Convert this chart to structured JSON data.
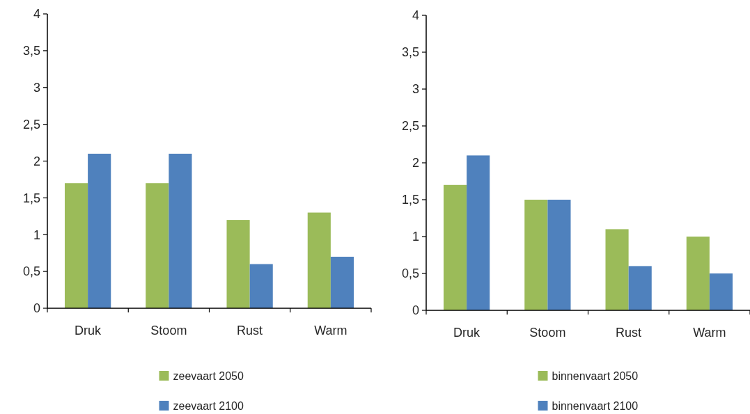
{
  "chart_data": [
    {
      "type": "bar",
      "categories": [
        "Druk",
        "Stoom",
        "Rust",
        "Warm"
      ],
      "series": [
        {
          "name": "zeevaart 2050",
          "color": "#9bbb59",
          "values": [
            1.7,
            1.7,
            1.2,
            1.3
          ]
        },
        {
          "name": "zeevaart 2100",
          "color": "#4f81bd",
          "values": [
            2.1,
            2.1,
            0.6,
            0.7
          ]
        }
      ],
      "ylim": [
        0,
        4
      ],
      "yticks": [
        0,
        {
          "value": 0.5,
          "label": "0,5"
        },
        1,
        {
          "value": 1.5,
          "label": "1,5"
        },
        2,
        {
          "value": 2.5,
          "label": "2,5"
        },
        3,
        {
          "value": 3.5,
          "label": "3,5"
        },
        4
      ],
      "legend": "bottom"
    },
    {
      "type": "bar",
      "categories": [
        "Druk",
        "Stoom",
        "Rust",
        "Warm"
      ],
      "series": [
        {
          "name": "binnenvaart 2050",
          "color": "#9bbb59",
          "values": [
            1.7,
            1.5,
            1.1,
            1.0
          ]
        },
        {
          "name": "binnenvaart 2100",
          "color": "#4f81bd",
          "values": [
            2.1,
            1.5,
            0.6,
            0.5
          ]
        }
      ],
      "ylim": [
        0,
        4
      ],
      "yticks": [
        0,
        {
          "value": 0.5,
          "label": "0,5"
        },
        1,
        {
          "value": 1.5,
          "label": "1,5"
        },
        2,
        {
          "value": 2.5,
          "label": "2,5"
        },
        3,
        {
          "value": 3.5,
          "label": "3,5"
        },
        4
      ],
      "legend": "bottom"
    }
  ]
}
